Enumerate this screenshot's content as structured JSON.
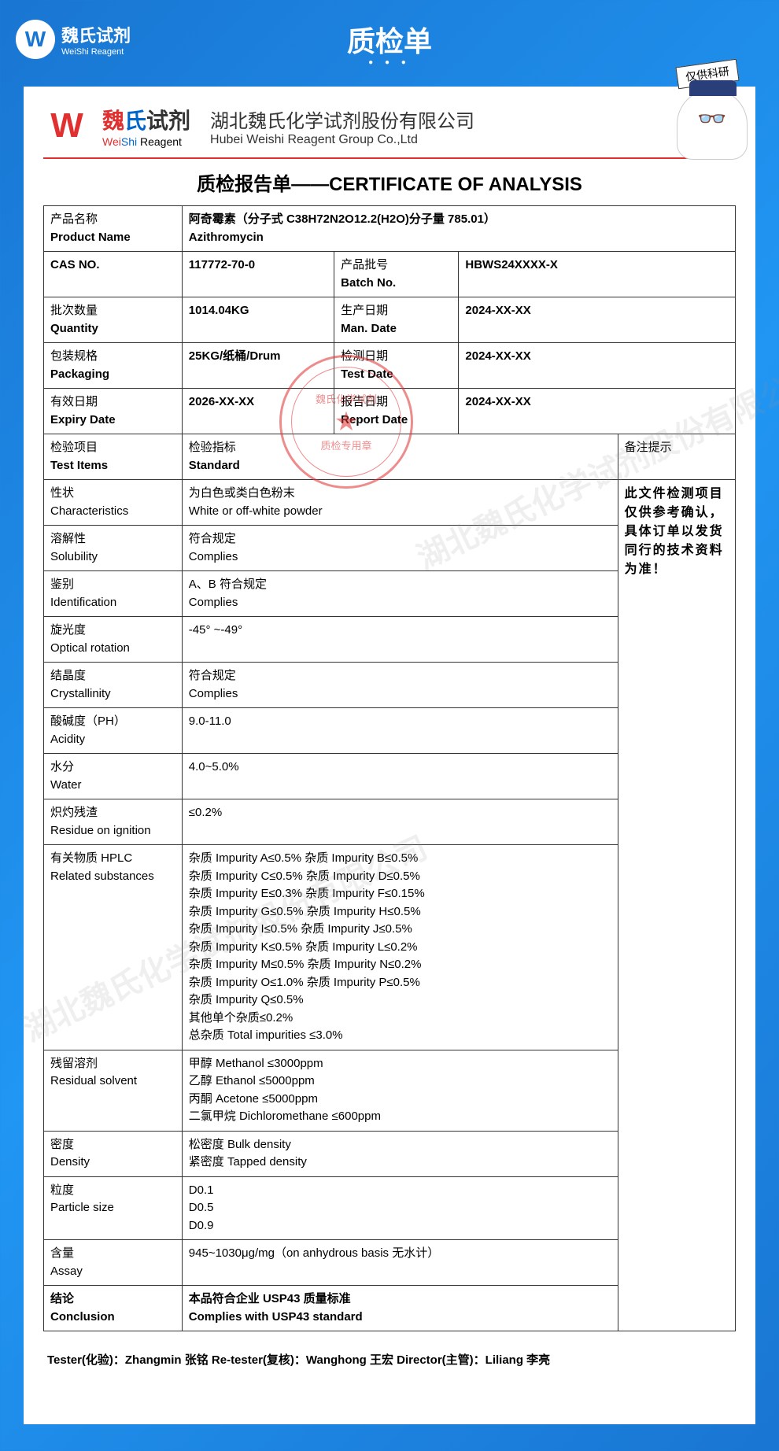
{
  "banner": {
    "logo_cn": "魏氏试剂",
    "logo_en": "WeiShi Reagent",
    "title": "质检单"
  },
  "mascot_badge": "仅供科研",
  "doc_header": {
    "logo_cn_wei": "魏",
    "logo_cn_shi": "氏",
    "logo_cn_rest": "试剂",
    "logo_en_wei": "Wei",
    "logo_en_shi": "Shi",
    "logo_en_rest": " Reagent",
    "company_cn": "湖北魏氏化学试剂股份有限公司",
    "company_en": "Hubei Weishi Reagent Group Co.,Ltd"
  },
  "doc_title": "质检报告单——CERTIFICATE OF ANALYSIS",
  "stamp": {
    "top_text": "魏氏化学试剂",
    "bottom_text": "质检专用章"
  },
  "watermark": "湖北魏氏化学试剂股份有限公司",
  "fields": {
    "product_name": {
      "label_cn": "产品名称",
      "label_en": "Product Name",
      "value_cn": "阿奇霉素（分子式 C38H72N2O12.2(H2O)分子量 785.01）",
      "value_en": "Azithromycin"
    },
    "cas": {
      "label": "CAS   NO.",
      "value": "117772-70-0"
    },
    "batch_no": {
      "label_cn": "产品批号",
      "label_en": "Batch No.",
      "value": "HBWS24XXXX-X"
    },
    "quantity": {
      "label_cn": "批次数量",
      "label_en": "Quantity",
      "value": "1014.04KG"
    },
    "man_date": {
      "label_cn": "生产日期",
      "label_en": "Man. Date",
      "value": "2024-XX-XX"
    },
    "packaging": {
      "label_cn": "包装规格",
      "label_en": "Packaging",
      "value": "25KG/纸桶/Drum"
    },
    "test_date": {
      "label_cn": "检测日期",
      "label_en": "Test Date",
      "value": "2024-XX-XX"
    },
    "expiry": {
      "label_cn": "有效日期",
      "label_en": "Expiry Date",
      "value": "2026-XX-XX"
    },
    "report_date": {
      "label_cn": "报告日期",
      "label_en": "Report Date",
      "value": "2024-XX-XX"
    }
  },
  "test_header": {
    "items_cn": "检验项目",
    "items_en": "Test Items",
    "std_cn": "检验指标",
    "std_en": "Standard",
    "remarks": "备注提示"
  },
  "tests": {
    "characteristics": {
      "cn": "性状",
      "en": "Characteristics",
      "std_cn": "为白色或类白色粉末",
      "std_en": "White or off-white powder"
    },
    "solubility": {
      "cn": "溶解性",
      "en": "Solubility",
      "std_cn": "符合规定",
      "std_en": "Complies"
    },
    "identification": {
      "cn": "鉴别",
      "en": "Identification",
      "std_cn": "A、B 符合规定",
      "std_en": "Complies"
    },
    "optical": {
      "cn": "旋光度",
      "en": "Optical rotation",
      "std": "-45° ~-49°"
    },
    "crystallinity": {
      "cn": "结晶度",
      "en": "Crystallinity",
      "std_cn": "符合规定",
      "std_en": "Complies"
    },
    "acidity": {
      "cn": "酸碱度（PH）",
      "en": "Acidity",
      "std": "9.0-11.0"
    },
    "water": {
      "cn": "水分",
      "en": "Water",
      "std": "4.0~5.0%"
    },
    "residue": {
      "cn": "炽灼残渣",
      "en": "Residue on ignition",
      "std": "≤0.2%"
    },
    "related": {
      "cn": "有关物质   HPLC",
      "en": "Related substances",
      "lines": [
        "杂质 Impurity A≤0.5%  杂质 Impurity B≤0.5%",
        "杂质 Impurity C≤0.5%  杂质 Impurity D≤0.5%",
        "杂质 Impurity E≤0.3%  杂质 Impurity F≤0.15%",
        "杂质 Impurity G≤0.5%  杂质 Impurity H≤0.5%",
        "杂质 Impurity I≤0.5%    杂质 Impurity J≤0.5%",
        "杂质 Impurity K≤0.5%  杂质 Impurity L≤0.2%",
        "杂质 Impurity M≤0.5%  杂质 Impurity N≤0.2%",
        "杂质 Impurity O≤1.0%  杂质 Impurity P≤0.5%",
        "杂质 Impurity Q≤0.5%",
        "其他单个杂质≤0.2%",
        "总杂质 Total impurities  ≤3.0%"
      ]
    },
    "solvent": {
      "cn": "残留溶剂",
      "en": "Residual solvent",
      "lines": [
        "甲醇 Methanol  ≤3000ppm",
        "乙醇 Ethanol  ≤5000ppm",
        "丙酮 Acetone  ≤5000ppm",
        "二氯甲烷 Dichloromethane  ≤600ppm"
      ]
    },
    "density": {
      "cn": "密度",
      "en": "Density",
      "std_cn": "松密度   Bulk   density",
      "std_en": "紧密度  Tapped density"
    },
    "particle": {
      "cn": "粒度",
      "en": "Particle size",
      "lines": [
        "D0.1",
        "D0.5",
        "D0.9"
      ]
    },
    "assay": {
      "cn": "含量",
      "en": "Assay",
      "std": "945~1030μg/mg（on anhydrous basis 无水计）"
    },
    "conclusion": {
      "cn": "结论",
      "en": "Conclusion",
      "std_cn": "本品符合企业 USP43 质量标准",
      "std_en": "Complies with USP43 standard"
    }
  },
  "remarks_text": "此文件检测项目仅供参考确认，具体订单以发货同行的技术资料为准！",
  "testers": "Tester(化验)：Zhangmin 张铭 Re-tester(复核)：Wanghong 王宏 Director(主管)：Liliang 李亮",
  "colors": {
    "banner_bg": "#1976d2",
    "accent_red": "#e03030",
    "accent_blue": "#0066cc",
    "border": "#333333"
  }
}
